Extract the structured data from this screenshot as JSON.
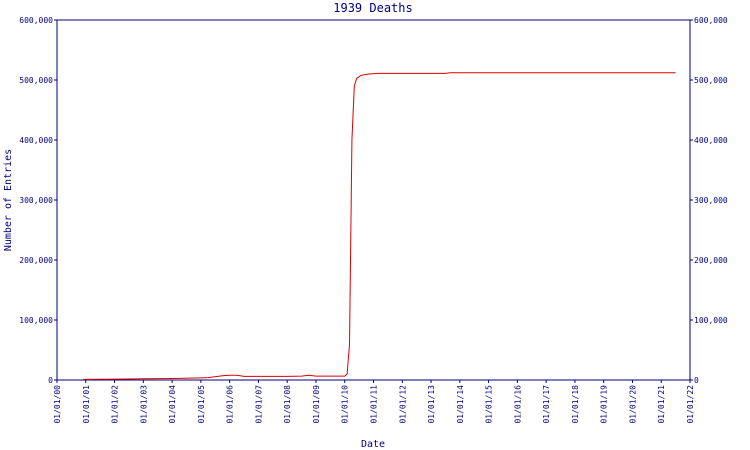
{
  "chart_data": {
    "type": "line",
    "title": "1939 Deaths",
    "x_label": "Date",
    "y_label": "Number of Entries",
    "x": [
      "12/01/00",
      "01/01/02",
      "01/01/03",
      "01/01/04",
      "01/01/05",
      "04/01/05",
      "10/01/05",
      "01/01/06",
      "04/01/06",
      "07/01/06",
      "01/01/08",
      "07/01/08",
      "10/01/08",
      "01/01/09",
      "01/01/10",
      "02/01/10",
      "03/01/10",
      "04/01/10",
      "05/01/10",
      "06/01/10",
      "08/01/10",
      "11/01/10",
      "03/01/11",
      "07/01/13",
      "09/01/13",
      "07/01/21"
    ],
    "series": [
      {
        "name": "1939 Deaths",
        "color": "#dd0000",
        "values": [
          1000,
          1500,
          2000,
          2500,
          3500,
          4000,
          7000,
          8000,
          8000,
          6000,
          6000,
          6500,
          8000,
          6500,
          6500,
          10000,
          60000,
          400000,
          490000,
          503000,
          508000,
          510000,
          511000,
          511000,
          512000,
          512000
        ]
      }
    ],
    "xlim": [
      "01/01/00",
      "01/01/22"
    ],
    "xticks": [
      "01/01/00",
      "01/01/01",
      "01/01/02",
      "01/01/03",
      "01/01/04",
      "01/01/05",
      "01/01/06",
      "01/01/07",
      "01/01/08",
      "01/01/09",
      "01/01/10",
      "01/01/11",
      "01/01/12",
      "01/01/13",
      "01/01/14",
      "01/01/15",
      "01/01/16",
      "01/01/17",
      "01/01/18",
      "01/01/19",
      "01/01/20",
      "01/01/21",
      "01/01/22"
    ],
    "ylim": [
      0,
      600000
    ],
    "yticks": [
      0,
      {
        "value": 100000,
        "label": "100,000"
      },
      {
        "value": 200000,
        "label": "200,000"
      },
      {
        "value": 300000,
        "label": "300,000"
      },
      {
        "value": 400000,
        "label": "400,000"
      },
      {
        "value": 500000,
        "label": "500,000"
      },
      {
        "value": 600000,
        "label": "600,000"
      }
    ],
    "y2lim": [
      0,
      600000
    ],
    "y2ticks": [
      0,
      {
        "value": 100000,
        "label": "100,000"
      },
      {
        "value": 200000,
        "label": "200,000"
      },
      {
        "value": 300000,
        "label": "300,000"
      },
      {
        "value": 400000,
        "label": "400,000"
      },
      {
        "value": 500000,
        "label": "500,000"
      },
      {
        "value": 600000,
        "label": "600,000"
      }
    ]
  }
}
